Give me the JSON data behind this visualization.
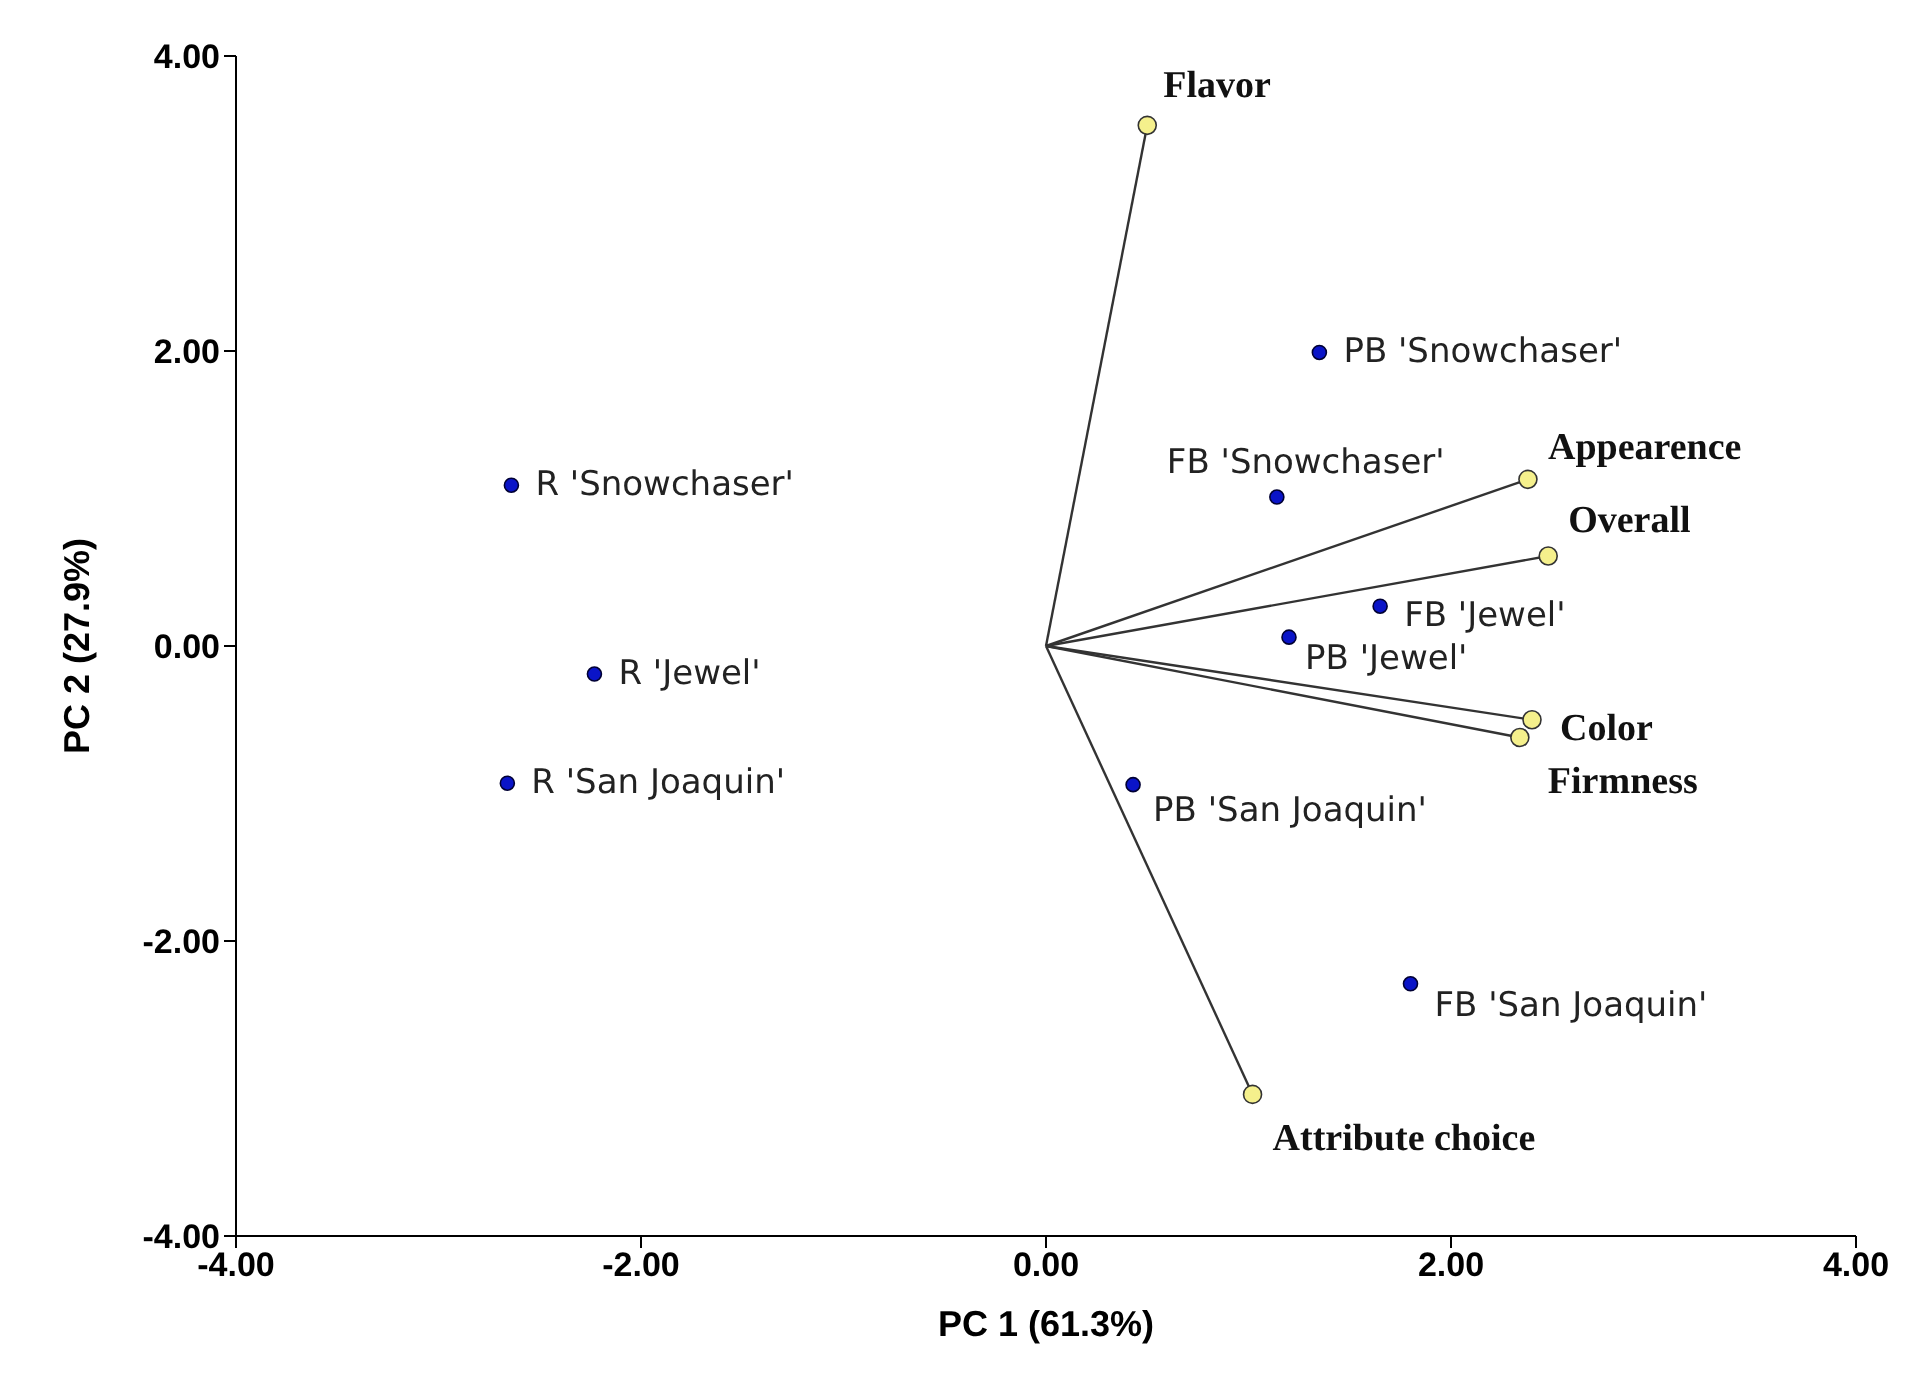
{
  "chart_data": {
    "type": "scatter",
    "xlabel": "PC 1 (61.3%)",
    "ylabel": "PC 2 (27.9%)",
    "xlim": [
      -4,
      4
    ],
    "ylim": [
      -4,
      4
    ],
    "xticks": [
      {
        "value": -4,
        "label": "-4.00"
      },
      {
        "value": -2,
        "label": "-2.00"
      },
      {
        "value": 0,
        "label": "0.00"
      },
      {
        "value": 2,
        "label": "2.00"
      },
      {
        "value": 4,
        "label": "4.00"
      }
    ],
    "yticks": [
      {
        "value": -4,
        "label": "-4.00"
      },
      {
        "value": -2,
        "label": "-2.00"
      },
      {
        "value": 0,
        "label": "0.00"
      },
      {
        "value": 2,
        "label": "2.00"
      },
      {
        "value": 4,
        "label": "4.00"
      }
    ],
    "grid": false,
    "legend": false,
    "marker": "circle",
    "series": [
      {
        "color": "#0a14c8",
        "x": [
          -2.64,
          -2.23,
          -2.66,
          1.35,
          1.14,
          1.65,
          1.2,
          0.43,
          1.8
        ],
        "values": [
          1.09,
          -0.19,
          -0.93,
          1.99,
          1.01,
          0.27,
          0.06,
          -0.94,
          -2.29
        ],
        "value_labels": [
          "R 'Snowchaser'",
          "R 'Jewel'",
          "R 'San Joaquin'",
          "PB 'Snowchaser'",
          "FB 'Snowchaser'",
          "FB 'Jewel'",
          "PB 'Jewel'",
          "PB 'San Joaquin'",
          "FB 'San Joaquin'"
        ]
      },
      {
        "type": "line",
        "name": "Flavor",
        "color": "#333333",
        "x": [
          0,
          0.5
        ],
        "values": [
          0,
          3.53
        ]
      },
      {
        "type": "line",
        "name": "Appearence",
        "color": "#333333",
        "x": [
          0,
          2.38
        ],
        "values": [
          0,
          1.13
        ]
      },
      {
        "type": "line",
        "name": "Overall",
        "color": "#333333",
        "x": [
          0,
          2.48
        ],
        "values": [
          0,
          0.61
        ]
      },
      {
        "type": "line",
        "name": "Color",
        "color": "#333333",
        "x": [
          0,
          2.4
        ],
        "values": [
          0,
          -0.5
        ]
      },
      {
        "type": "line",
        "name": "Firmness",
        "color": "#333333",
        "x": [
          0,
          2.34
        ],
        "values": [
          0,
          -0.62
        ]
      },
      {
        "type": "line",
        "name": "Attribute choice",
        "color": "#333333",
        "x": [
          0,
          1.02
        ],
        "values": [
          0,
          -3.04
        ]
      }
    ]
  }
}
